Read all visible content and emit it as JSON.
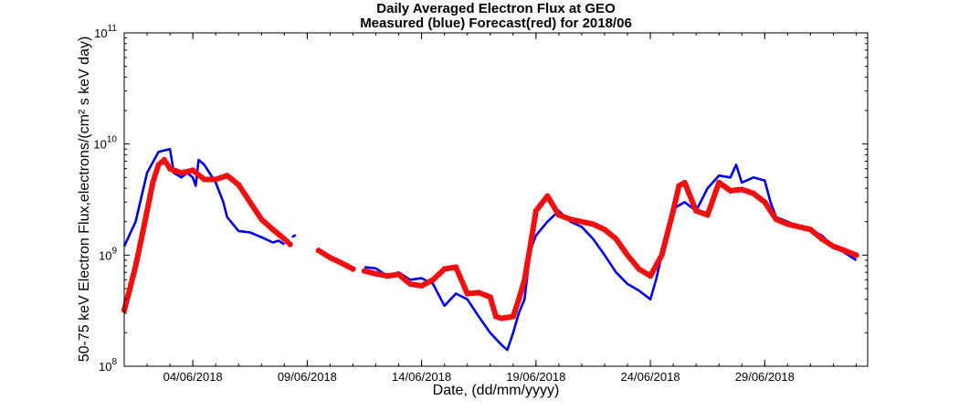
{
  "chart_data": {
    "type": "line",
    "title": [
      "Daily Averaged Electron Flux at GEO",
      "Measured (blue) Forecast(red) for 2018/06"
    ],
    "xlabel": "Date, (dd/mm/yyyy)",
    "ylabel": "50-75 keV Electron Flux,electrons/(cm² s keV day)",
    "y_scale": "log",
    "ylim": [
      100000000.0,
      100000000000.0
    ],
    "y_ticks": [
      {
        "value": 100000000.0,
        "base": "10",
        "exp": "8"
      },
      {
        "value": 1000000000.0,
        "base": "10",
        "exp": "9"
      },
      {
        "value": 10000000000.0,
        "base": "10",
        "exp": "10"
      },
      {
        "value": 100000000000.0,
        "base": "10",
        "exp": "11"
      }
    ],
    "xlim": [
      "2018-06-01T00:00",
      "2018-07-03T12:00"
    ],
    "x_ticks": [
      "2018-06-04",
      "2018-06-09",
      "2018-06-14",
      "2018-06-19",
      "2018-06-24",
      "2018-06-29"
    ],
    "x_tick_labels": [
      "04/06/2018",
      "09/06/2018",
      "14/06/2018",
      "19/06/2018",
      "24/06/2018",
      "29/06/2018"
    ],
    "grid": false,
    "series": [
      {
        "name": "Measured",
        "color": "#0000e6",
        "style": "line",
        "segments": [
          [
            [
              "2018-06-01T00:00",
              1200000000.0
            ],
            [
              "2018-06-01T12:00",
              2000000000.0
            ],
            [
              "2018-06-02T00:00",
              5500000000.0
            ],
            [
              "2018-06-02T12:00",
              8500000000.0
            ],
            [
              "2018-06-03T00:00",
              9000000000.0
            ],
            [
              "2018-06-03T04:00",
              5500000000.0
            ],
            [
              "2018-06-03T12:00",
              5000000000.0
            ],
            [
              "2018-06-03T18:00",
              5500000000.0
            ],
            [
              "2018-06-04T00:00",
              5000000000.0
            ],
            [
              "2018-06-04T03:00",
              4200000000.0
            ],
            [
              "2018-06-04T06:00",
              7200000000.0
            ],
            [
              "2018-06-04T12:00",
              6500000000.0
            ],
            [
              "2018-06-05T00:00",
              4500000000.0
            ],
            [
              "2018-06-05T08:00",
              3000000000.0
            ],
            [
              "2018-06-05T12:00",
              2200000000.0
            ],
            [
              "2018-06-06T00:00",
              1650000000.0
            ],
            [
              "2018-06-06T12:00",
              1600000000.0
            ],
            [
              "2018-06-07T00:00",
              1450000000.0
            ],
            [
              "2018-06-07T12:00",
              1300000000.0
            ],
            [
              "2018-06-07T18:00",
              1350000000.0
            ],
            [
              "2018-06-08T00:00",
              1250000000.0
            ]
          ],
          [
            [
              "2018-06-08T08:00",
              1450000000.0
            ],
            [
              "2018-06-08T12:00",
              1520000000.0
            ]
          ],
          [
            [
              "2018-06-11T12:00",
              780000000.0
            ],
            [
              "2018-06-12T00:00",
              760000000.0
            ],
            [
              "2018-06-12T12:00",
              650000000.0
            ],
            [
              "2018-06-13T00:00",
              700000000.0
            ],
            [
              "2018-06-13T12:00",
              600000000.0
            ],
            [
              "2018-06-14T00:00",
              620000000.0
            ],
            [
              "2018-06-14T12:00",
              550000000.0
            ],
            [
              "2018-06-15T00:00",
              350000000.0
            ],
            [
              "2018-06-15T12:00",
              450000000.0
            ],
            [
              "2018-06-16T00:00",
              400000000.0
            ],
            [
              "2018-06-16T12:00",
              280000000.0
            ],
            [
              "2018-06-17T00:00",
              200000000.0
            ],
            [
              "2018-06-17T12:00",
              155000000.0
            ],
            [
              "2018-06-17T18:00",
              140000000.0
            ],
            [
              "2018-06-18T00:00",
              200000000.0
            ],
            [
              "2018-06-18T06:00",
              300000000.0
            ],
            [
              "2018-06-18T12:00",
              400000000.0
            ],
            [
              "2018-06-18T18:00",
              1100000000.0
            ],
            [
              "2018-06-19T00:00",
              1500000000.0
            ],
            [
              "2018-06-19T12:00",
              2000000000.0
            ],
            [
              "2018-06-20T00:00",
              2500000000.0
            ],
            [
              "2018-06-20T12:00",
              2000000000.0
            ],
            [
              "2018-06-21T00:00",
              1800000000.0
            ],
            [
              "2018-06-21T12:00",
              1400000000.0
            ],
            [
              "2018-06-22T00:00",
              1000000000.0
            ],
            [
              "2018-06-22T12:00",
              700000000.0
            ],
            [
              "2018-06-23T00:00",
              550000000.0
            ],
            [
              "2018-06-23T12:00",
              480000000.0
            ],
            [
              "2018-06-24T00:00",
              400000000.0
            ],
            [
              "2018-06-24T06:00",
              600000000.0
            ],
            [
              "2018-06-24T12:00",
              1000000000.0
            ],
            [
              "2018-06-25T00:00",
              2600000000.0
            ],
            [
              "2018-06-25T12:00",
              3000000000.0
            ],
            [
              "2018-06-26T00:00",
              2500000000.0
            ],
            [
              "2018-06-26T12:00",
              4000000000.0
            ],
            [
              "2018-06-27T00:00",
              5200000000.0
            ],
            [
              "2018-06-27T12:00",
              5000000000.0
            ],
            [
              "2018-06-27T18:00",
              6500000000.0
            ],
            [
              "2018-06-28T00:00",
              4500000000.0
            ],
            [
              "2018-06-28T12:00",
              5000000000.0
            ],
            [
              "2018-06-29T00:00",
              4700000000.0
            ],
            [
              "2018-06-29T06:00",
              3000000000.0
            ],
            [
              "2018-06-29T12:00",
              2200000000.0
            ],
            [
              "2018-06-30T00:00",
              2000000000.0
            ],
            [
              "2018-06-30T12:00",
              1800000000.0
            ],
            [
              "2018-07-01T00:00",
              1700000000.0
            ],
            [
              "2018-07-01T12:00",
              1500000000.0
            ],
            [
              "2018-07-02T00:00",
              1200000000.0
            ],
            [
              "2018-07-02T12:00",
              1050000000.0
            ],
            [
              "2018-07-03T00:00",
              900000000.0
            ]
          ]
        ]
      },
      {
        "name": "Forecast",
        "color": "#ee1111",
        "style": "markers",
        "segments": [
          [
            [
              "2018-06-01T00:00",
              320000000.0
            ],
            [
              "2018-06-01T06:00",
              500000000.0
            ],
            [
              "2018-06-01T12:00",
              800000000.0
            ],
            [
              "2018-06-01T18:00",
              1400000000.0
            ],
            [
              "2018-06-02T00:00",
              2500000000.0
            ],
            [
              "2018-06-02T06:00",
              4500000000.0
            ],
            [
              "2018-06-02T12:00",
              6500000000.0
            ],
            [
              "2018-06-02T18:00",
              7200000000.0
            ],
            [
              "2018-06-03T00:00",
              6000000000.0
            ],
            [
              "2018-06-03T12:00",
              5500000000.0
            ],
            [
              "2018-06-04T00:00",
              5800000000.0
            ],
            [
              "2018-06-04T12:00",
              4800000000.0
            ],
            [
              "2018-06-05T00:00",
              4800000000.0
            ],
            [
              "2018-06-05T12:00",
              5200000000.0
            ],
            [
              "2018-06-06T00:00",
              4300000000.0
            ],
            [
              "2018-06-06T12:00",
              3000000000.0
            ],
            [
              "2018-06-07T00:00",
              2100000000.0
            ],
            [
              "2018-06-07T12:00",
              1700000000.0
            ],
            [
              "2018-06-08T00:00",
              1400000000.0
            ],
            [
              "2018-06-08T06:00",
              1250000000.0
            ]
          ],
          [
            [
              "2018-06-09T12:00",
              1100000000.0
            ],
            [
              "2018-06-10T00:00",
              950000000.0
            ],
            [
              "2018-06-10T12:00",
              850000000.0
            ],
            [
              "2018-06-11T00:00",
              750000000.0
            ]
          ],
          [
            [
              "2018-06-11T12:00",
              720000000.0
            ],
            [
              "2018-06-12T00:00",
              680000000.0
            ],
            [
              "2018-06-12T12:00",
              650000000.0
            ],
            [
              "2018-06-13T00:00",
              670000000.0
            ],
            [
              "2018-06-13T12:00",
              550000000.0
            ],
            [
              "2018-06-14T00:00",
              530000000.0
            ],
            [
              "2018-06-14T12:00",
              600000000.0
            ],
            [
              "2018-06-15T00:00",
              750000000.0
            ],
            [
              "2018-06-15T12:00",
              780000000.0
            ],
            [
              "2018-06-16T00:00",
              450000000.0
            ],
            [
              "2018-06-16T12:00",
              460000000.0
            ],
            [
              "2018-06-17T00:00",
              420000000.0
            ],
            [
              "2018-06-17T06:00",
              280000000.0
            ],
            [
              "2018-06-17T12:00",
              270000000.0
            ],
            [
              "2018-06-18T00:00",
              280000000.0
            ],
            [
              "2018-06-18T06:00",
              400000000.0
            ],
            [
              "2018-06-18T12:00",
              600000000.0
            ],
            [
              "2018-06-18T18:00",
              1200000000.0
            ],
            [
              "2018-06-19T00:00",
              2500000000.0
            ],
            [
              "2018-06-19T12:00",
              3400000000.0
            ],
            [
              "2018-06-20T00:00",
              2300000000.0
            ],
            [
              "2018-06-20T12:00",
              2100000000.0
            ],
            [
              "2018-06-21T00:00",
              2000000000.0
            ],
            [
              "2018-06-21T12:00",
              1900000000.0
            ],
            [
              "2018-06-22T00:00",
              1700000000.0
            ],
            [
              "2018-06-22T12:00",
              1400000000.0
            ],
            [
              "2018-06-23T00:00",
              1000000000.0
            ],
            [
              "2018-06-23T12:00",
              750000000.0
            ],
            [
              "2018-06-24T00:00",
              650000000.0
            ],
            [
              "2018-06-24T12:00",
              1000000000.0
            ],
            [
              "2018-06-25T00:00",
              2500000000.0
            ],
            [
              "2018-06-25T06:00",
              4200000000.0
            ],
            [
              "2018-06-25T12:00",
              4500000000.0
            ],
            [
              "2018-06-26T00:00",
              2500000000.0
            ],
            [
              "2018-06-26T12:00",
              2300000000.0
            ],
            [
              "2018-06-27T00:00",
              4500000000.0
            ],
            [
              "2018-06-27T12:00",
              3800000000.0
            ],
            [
              "2018-06-28T00:00",
              3900000000.0
            ],
            [
              "2018-06-28T12:00",
              3600000000.0
            ],
            [
              "2018-06-29T00:00",
              3000000000.0
            ],
            [
              "2018-06-29T12:00",
              2100000000.0
            ],
            [
              "2018-06-30T00:00",
              1900000000.0
            ],
            [
              "2018-06-30T12:00",
              1800000000.0
            ],
            [
              "2018-07-01T00:00",
              1700000000.0
            ],
            [
              "2018-07-01T12:00",
              1400000000.0
            ],
            [
              "2018-07-02T00:00",
              1200000000.0
            ],
            [
              "2018-07-02T12:00",
              1100000000.0
            ],
            [
              "2018-07-03T00:00",
              1000000000.0
            ]
          ]
        ]
      }
    ]
  }
}
